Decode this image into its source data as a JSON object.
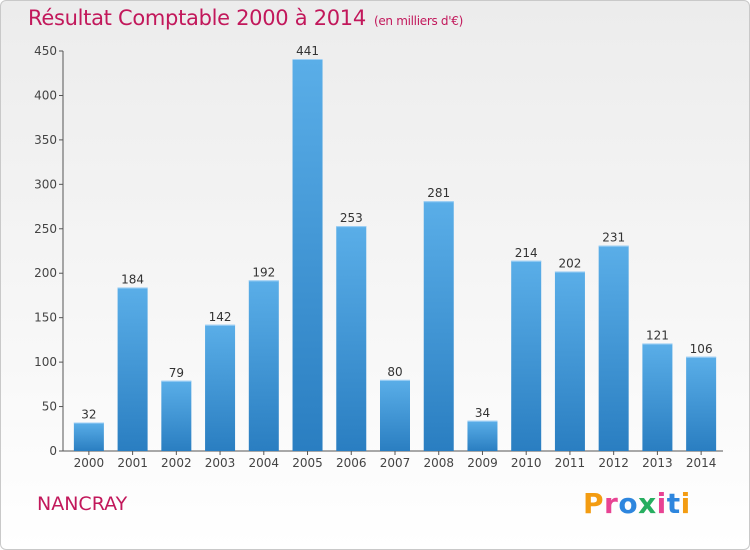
{
  "title": "Résultat Comptable 2000 à 2014",
  "subtitle": "(en milliers d'€)",
  "place_name": "NANCRAY",
  "logo": {
    "text": "Proxiti",
    "letters": [
      {
        "ch": "P",
        "color": "#f39c12"
      },
      {
        "ch": "r",
        "color": "#e84393"
      },
      {
        "ch": "o",
        "color": "#2e86de"
      },
      {
        "ch": "x",
        "color": "#27ae60"
      },
      {
        "ch": "i",
        "color": "#e84393"
      },
      {
        "ch": "t",
        "color": "#2e86de"
      },
      {
        "ch": "i",
        "color": "#f39c12"
      }
    ]
  },
  "colors": {
    "accent": "#c2185b",
    "bar_top": "#5aaee8",
    "bar_bottom": "#2a7ec1"
  },
  "chart_data": {
    "type": "bar",
    "title": "Résultat Comptable 2000 à 2014",
    "xlabel": "",
    "ylabel": "",
    "categories": [
      "2000",
      "2001",
      "2002",
      "2003",
      "2004",
      "2005",
      "2006",
      "2007",
      "2008",
      "2009",
      "2010",
      "2011",
      "2012",
      "2013",
      "2014"
    ],
    "values": [
      32,
      184,
      79,
      142,
      192,
      441,
      253,
      80,
      281,
      34,
      214,
      202,
      231,
      121,
      106
    ],
    "ylim": [
      0,
      450
    ],
    "yticks": [
      0,
      50,
      100,
      150,
      200,
      250,
      300,
      350,
      400,
      450
    ],
    "grid": false,
    "legend": "none"
  }
}
